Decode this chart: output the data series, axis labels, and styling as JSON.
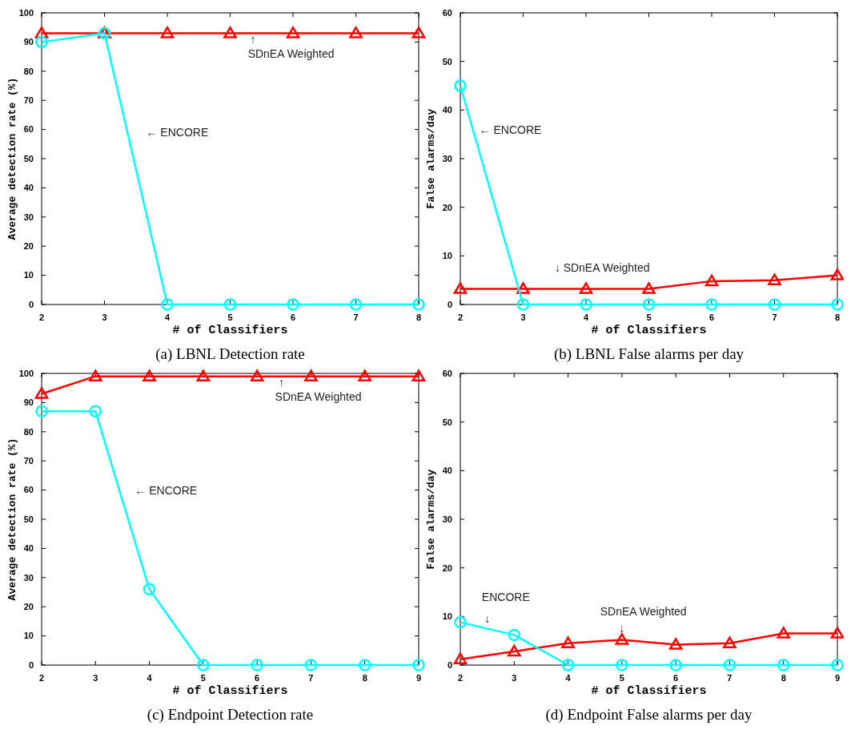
{
  "chart_data": [
    {
      "type": "line",
      "title": "(a) LBNL Detection rate",
      "xlabel": "# of Classifiers",
      "ylabel": "Average detection rate (%)",
      "x": [
        2,
        3,
        4,
        5,
        6,
        7,
        8
      ],
      "xlim": [
        2,
        8
      ],
      "xticks": [
        2,
        3,
        4,
        5,
        6,
        7,
        8
      ],
      "ylim": [
        0,
        100
      ],
      "yticks": [
        0,
        10,
        20,
        30,
        40,
        50,
        60,
        70,
        80,
        90,
        100
      ],
      "line_style": "solid",
      "series": [
        {
          "color": "#ff0000",
          "marker": "triangle",
          "values": [
            93,
            93,
            93,
            93,
            93,
            93,
            93
          ]
        },
        {
          "color": "#00ffff",
          "marker": "circle",
          "values": [
            90,
            93,
            0,
            0,
            0,
            0,
            0
          ]
        }
      ],
      "annotations": [
        "← ENCORE",
        "↑",
        "SDnEA Weighted"
      ]
    },
    {
      "type": "line",
      "title": "(b) LBNL False alarms per day",
      "xlabel": "# of Classifiers",
      "ylabel": "False alarms/day",
      "x": [
        2,
        3,
        4,
        5,
        6,
        7,
        8
      ],
      "xlim": [
        2,
        8
      ],
      "xticks": [
        2,
        3,
        4,
        5,
        6,
        7,
        8
      ],
      "ylim": [
        0,
        60
      ],
      "yticks": [
        0,
        10,
        20,
        30,
        40,
        50,
        60
      ],
      "line_style": "solid",
      "series": [
        {
          "color": "#ff0000",
          "marker": "triangle",
          "values": [
            3.2,
            3.2,
            3.2,
            3.2,
            4.8,
            5,
            6
          ]
        },
        {
          "color": "#00ffff",
          "marker": "circle",
          "values": [
            45,
            0,
            0,
            0,
            0,
            0,
            0
          ]
        }
      ],
      "annotations": [
        "← ENCORE",
        "↓ SDnEA Weighted"
      ]
    },
    {
      "type": "line",
      "title": "(c) Endpoint Detection rate",
      "xlabel": "# of Classifiers",
      "ylabel": "Average detection rate (%)",
      "x": [
        2,
        3,
        4,
        5,
        6,
        7,
        8,
        9
      ],
      "xlim": [
        2,
        9
      ],
      "xticks": [
        2,
        3,
        4,
        5,
        6,
        7,
        8,
        9
      ],
      "ylim": [
        0,
        100
      ],
      "yticks": [
        0,
        10,
        20,
        30,
        40,
        50,
        60,
        70,
        80,
        90,
        100
      ],
      "line_style": "solid",
      "series": [
        {
          "color": "#ff0000",
          "marker": "triangle",
          "values": [
            93,
            99,
            99,
            99,
            99,
            99,
            99,
            99
          ]
        },
        {
          "color": "#00ffff",
          "marker": "circle",
          "values": [
            87,
            87,
            26,
            0,
            0,
            0,
            0,
            0
          ]
        }
      ],
      "annotations": [
        "← ENCORE",
        "↑",
        "SDnEA Weighted"
      ]
    },
    {
      "type": "line",
      "title": "(d) Endpoint False alarms per day",
      "xlabel": "# of Classifiers",
      "ylabel": "False alarms/day",
      "x": [
        2,
        3,
        4,
        5,
        6,
        7,
        8,
        9
      ],
      "xlim": [
        2,
        9
      ],
      "xticks": [
        2,
        3,
        4,
        5,
        6,
        7,
        8,
        9
      ],
      "ylim": [
        0,
        60
      ],
      "yticks": [
        0,
        10,
        20,
        30,
        40,
        50,
        60
      ],
      "line_style": "solid",
      "series": [
        {
          "color": "#ff0000",
          "marker": "triangle",
          "values": [
            1.2,
            2.8,
            4.5,
            5.2,
            4.2,
            4.5,
            6.5,
            6.5
          ]
        },
        {
          "color": "#00ffff",
          "marker": "circle",
          "values": [
            8.8,
            6.2,
            0,
            0,
            0,
            0,
            0,
            0
          ]
        }
      ],
      "annotations": [
        "ENCORE",
        "↓",
        "SDnEA Weighted",
        "↓"
      ]
    }
  ]
}
